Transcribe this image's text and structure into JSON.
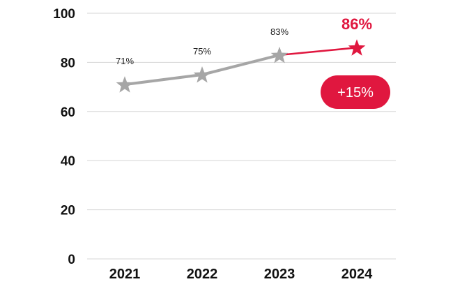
{
  "chart_data": {
    "type": "line",
    "categories": [
      "2021",
      "2022",
      "2023",
      "2024"
    ],
    "values": [
      71,
      75,
      83,
      86
    ],
    "data_labels": [
      "71%",
      "75%",
      "83%",
      "86%"
    ],
    "ylim": [
      0,
      100
    ],
    "yticks": [
      0,
      20,
      40,
      60,
      80,
      100
    ],
    "ytick_labels": [
      "0",
      "20",
      "40",
      "60",
      "80",
      "100"
    ],
    "grid": true,
    "marker": "star",
    "highlight_index": 3,
    "badge": {
      "text": "+15%"
    },
    "colors": {
      "series": "#a6a6a6",
      "highlight": "#e0173f",
      "grid": "#d6d6d6"
    }
  }
}
